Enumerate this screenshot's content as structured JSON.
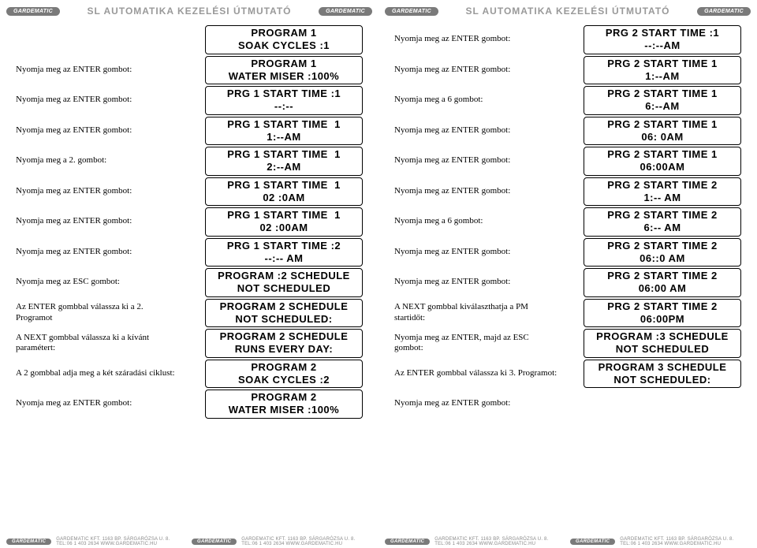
{
  "brand": "GARDEMATIC",
  "header_title": "SL AUTOMATIKA KEZELÉSI ÚTMUTATÓ",
  "footer_text": "GARDEMATIC KFT. 1163 BP. SÁRGARÓZSA U. 8. TEL:06 1 403 2634 WWW.GARDEMATIC.HU",
  "left": [
    {
      "label": "",
      "lcd": "PROGRAM 1\nSOAK CYCLES :1"
    },
    {
      "label": "Nyomja meg az ENTER gombot:",
      "lcd": "PROGRAM 1\nWATER MISER :100%"
    },
    {
      "label": "Nyomja meg az ENTER gombot:",
      "lcd": "PRG 1 START TIME :1\n--:--"
    },
    {
      "label": "Nyomja meg az ENTER gombot:",
      "lcd": "PRG 1 START TIME  1\n1:--AM"
    },
    {
      "label": "Nyomja meg a 2. gombot:",
      "lcd": "PRG 1 START TIME  1\n2:--AM"
    },
    {
      "label": "Nyomja meg az ENTER gombot:",
      "lcd": "PRG 1 START TIME  1\n02 :0AM"
    },
    {
      "label": "Nyomja meg az ENTER gombot:",
      "lcd": "PRG 1 START TIME  1\n02 :00AM"
    },
    {
      "label": "Nyomja meg az ENTER gombot:",
      "lcd": "PRG 1 START TIME :2\n--:-- AM"
    },
    {
      "label": "Nyomja meg az ESC gombot:",
      "lcd": "PROGRAM :2 SCHEDULE\nNOT SCHEDULED"
    },
    {
      "label": "Az ENTER gombbal válassza ki a 2. Programot",
      "lcd": "PROGRAM 2 SCHEDULE\nNOT SCHEDULED:"
    },
    {
      "label": "A NEXT gombbal válassza ki a kívánt paramétert:",
      "lcd": "PROGRAM 2 SCHEDULE\nRUNS EVERY DAY:"
    },
    {
      "label": "A 2 gombbal adja meg a két száradási ciklust:",
      "lcd": "PROGRAM 2\nSOAK CYCLES :2"
    },
    {
      "label": "Nyomja meg az ENTER gombot:",
      "lcd": "PROGRAM 2\nWATER MISER :100%"
    }
  ],
  "right": [
    {
      "label": "Nyomja meg az ENTER gombot:",
      "lcd": "PRG 2 START TIME :1\n--:--AM"
    },
    {
      "label": "Nyomja meg az ENTER gombot:",
      "lcd": "PRG 2 START TIME 1\n1:--AM"
    },
    {
      "label": "Nyomja meg a 6 gombot:",
      "lcd": "PRG 2 START TIME 1\n6:--AM"
    },
    {
      "label": "Nyomja meg az ENTER gombot:",
      "lcd": "PRG 2 START TIME 1\n06: 0AM"
    },
    {
      "label": "Nyomja meg az ENTER gombot:",
      "lcd": "PRG 2 START TIME 1\n06:00AM"
    },
    {
      "label": "Nyomja meg az ENTER gombot:",
      "lcd": "PRG 2 START TIME 2\n1:-- AM"
    },
    {
      "label": "Nyomja meg a 6 gombot:",
      "lcd": "PRG 2 START TIME 2\n6:-- AM"
    },
    {
      "label": "Nyomja meg az ENTER gombot:",
      "lcd": "PRG 2 START TIME 2\n06::0 AM"
    },
    {
      "label": "Nyomja meg az ENTER gombot:",
      "lcd": "PRG 2 START TIME 2\n06:00 AM"
    },
    {
      "label": "A NEXT gombbal kiválaszthatja a PM startidőt:",
      "lcd": "PRG 2 START TIME 2\n06:00PM"
    },
    {
      "label": "Nyomja meg az ENTER, majd az ESC gombot:",
      "lcd": "PROGRAM :3 SCHEDULE\nNOT SCHEDULED"
    },
    {
      "label": "Az ENTER gombbal válassza ki 3. Programot:",
      "lcd": "PROGRAM 3 SCHEDULE\nNOT SCHEDULED:"
    },
    {
      "label": "Nyomja meg az ENTER gombot:",
      "lcd": ""
    }
  ]
}
